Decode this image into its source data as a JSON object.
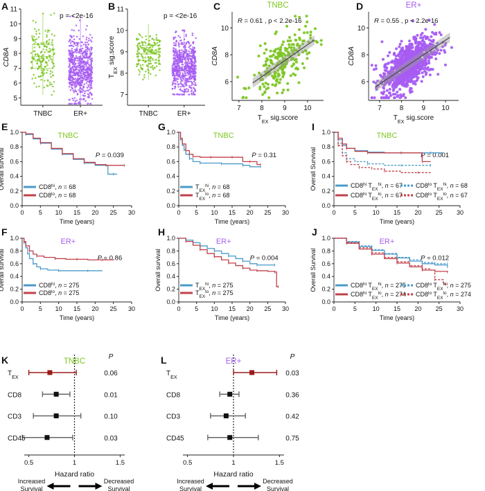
{
  "colors": {
    "tnbc": "#7dc623",
    "erplus": "#a75cf2",
    "blue": "#4a9ac9",
    "red": "#c0404a",
    "dark_red": "#9b1b1b",
    "gray": "#888888"
  },
  "chart_data": [
    {
      "panel": "A",
      "type": "scatter",
      "subtype": "box-jitter",
      "categories": [
        "TNBC",
        "ER+"
      ],
      "ylabel": "CD8A",
      "ylim": [
        4.5,
        11
      ],
      "yticks": [
        5,
        6,
        7,
        8,
        9,
        10,
        11
      ],
      "annotation": "p = <2e-16",
      "boxes": [
        {
          "category": "TNBC",
          "q1": 7.0,
          "median": 7.8,
          "q3": 8.6,
          "whisker_low": 5.2,
          "whisker_high": 10.7
        },
        {
          "category": "ER+",
          "q1": 6.2,
          "median": 6.9,
          "q3": 7.7,
          "whisker_low": 4.6,
          "whisker_high": 10.5
        }
      ]
    },
    {
      "panel": "B",
      "type": "scatter",
      "subtype": "box-jitter",
      "categories": [
        "TNBC",
        "ER+"
      ],
      "ylabel": "TEX sig.score",
      "ylim": [
        6.5,
        11
      ],
      "yticks": [
        7,
        8,
        9,
        10,
        11
      ],
      "annotation": "p = <2e-16",
      "boxes": [
        {
          "category": "TNBC",
          "q1": 8.6,
          "median": 8.9,
          "q3": 9.3,
          "whisker_low": 7.7,
          "whisker_high": 10.3
        },
        {
          "category": "ER+",
          "q1": 7.9,
          "median": 8.3,
          "q3": 8.8,
          "whisker_low": 7.0,
          "whisker_high": 10.0
        }
      ]
    },
    {
      "panel": "C",
      "type": "scatter",
      "title": "TNBC",
      "xlabel": "TEX sig.score",
      "ylabel": "CD8A",
      "xlim": [
        6.7,
        10.7
      ],
      "ylim": [
        4.6,
        11.2
      ],
      "xticks": [
        7,
        8,
        9,
        10
      ],
      "yticks": [
        6,
        8,
        10
      ],
      "annotation": "R = 0.61 , p < 2.2e-16",
      "fit": {
        "x0": 7.6,
        "y0": 5.9,
        "x1": 10.3,
        "y1": 9.1
      }
    },
    {
      "panel": "D",
      "type": "scatter",
      "title": "ER+",
      "xlabel": "TEX sig.score",
      "ylabel": "CD8A",
      "xlim": [
        6.5,
        10.6
      ],
      "ylim": [
        4.6,
        11.2
      ],
      "xticks": [
        7,
        8,
        9,
        10
      ],
      "yticks": [
        6,
        8,
        10
      ],
      "annotation": "R = 0.55 , p < 2.2e-16",
      "fit": {
        "x0": 6.8,
        "y0": 5.6,
        "x1": 10.2,
        "y1": 9.3
      }
    },
    {
      "panel": "E",
      "type": "line",
      "subtype": "kaplan-meier",
      "title": "TNBC",
      "xlabel": "Time (years)",
      "ylabel": "Overall survival",
      "xlim": [
        0,
        30
      ],
      "ylim": [
        0,
        1.0
      ],
      "xticks": [
        0,
        5,
        10,
        15,
        20,
        25,
        30
      ],
      "yticks": [
        0.0,
        0.2,
        0.4,
        0.6,
        0.8,
        1.0
      ],
      "annotation": "P = 0.039",
      "series": [
        {
          "name": "CD8hi, n = 68",
          "color_key": "blue",
          "dash": false,
          "x": [
            0,
            1,
            3,
            5,
            8,
            11,
            14,
            17,
            20,
            23,
            23.5,
            25,
            26
          ],
          "y": [
            1.0,
            0.97,
            0.91,
            0.85,
            0.77,
            0.7,
            0.63,
            0.58,
            0.55,
            0.55,
            0.43,
            0.43,
            0.43
          ]
        },
        {
          "name": "CD8lo, n = 68",
          "color_key": "red",
          "dash": false,
          "x": [
            0,
            1,
            3,
            5,
            8,
            11,
            14,
            17,
            20,
            23,
            26,
            28
          ],
          "y": [
            1.0,
            0.98,
            0.92,
            0.86,
            0.78,
            0.71,
            0.64,
            0.59,
            0.56,
            0.55,
            0.55,
            0.55
          ]
        }
      ]
    },
    {
      "panel": "G",
      "type": "line",
      "subtype": "kaplan-meier",
      "title": "TNBC",
      "xlabel": "Time (years)",
      "ylabel": "",
      "xlim": [
        0,
        30
      ],
      "ylim": [
        0,
        1.0
      ],
      "xticks": [
        0,
        5,
        10,
        15,
        20,
        25,
        30
      ],
      "yticks": [
        0.0,
        0.2,
        0.4,
        0.6,
        0.8,
        1.0
      ],
      "annotation": "P = 0.31",
      "series": [
        {
          "name": "TEXhi, n = 68",
          "color_key": "blue",
          "dash": false,
          "x": [
            0,
            0.5,
            1,
            1.5,
            2,
            3,
            4,
            6,
            9,
            12,
            15,
            18,
            20,
            23
          ],
          "y": [
            1.0,
            0.9,
            0.82,
            0.76,
            0.7,
            0.64,
            0.6,
            0.58,
            0.58,
            0.57,
            0.57,
            0.55,
            0.53,
            0.53
          ]
        },
        {
          "name": "TEXlo, n = 68",
          "color_key": "red",
          "dash": false,
          "x": [
            0,
            0.5,
            1,
            2,
            3,
            4,
            6,
            9,
            12,
            15,
            18,
            20,
            22,
            23
          ],
          "y": [
            1.0,
            0.92,
            0.84,
            0.75,
            0.7,
            0.67,
            0.66,
            0.66,
            0.66,
            0.66,
            0.6,
            0.6,
            0.56,
            0.56
          ]
        }
      ]
    },
    {
      "panel": "I",
      "type": "line",
      "subtype": "kaplan-meier",
      "title": "TNBC",
      "xlabel": "Time (years)",
      "ylabel": "Overall Survival",
      "xlim": [
        0,
        30
      ],
      "ylim": [
        0,
        1.0
      ],
      "xticks": [
        0,
        5,
        10,
        15,
        20,
        25,
        30
      ],
      "yticks": [
        0.0,
        0.2,
        0.4,
        0.6,
        0.8,
        1.0
      ],
      "annotation": "P = 0.001",
      "series": [
        {
          "name": "CD8hi TEXhi, n = 67",
          "color_key": "blue",
          "dash": false,
          "x": [
            0,
            1,
            2,
            3,
            5,
            8,
            12,
            16,
            20,
            23,
            26
          ],
          "y": [
            1.0,
            0.9,
            0.82,
            0.78,
            0.75,
            0.73,
            0.72,
            0.72,
            0.72,
            0.72,
            0.72
          ]
        },
        {
          "name": "CD8lo TEXhi, n = 68",
          "color_key": "blue",
          "dash": true,
          "x": [
            0,
            1,
            2,
            3,
            5,
            8,
            12,
            16,
            20,
            23
          ],
          "y": [
            1.0,
            0.85,
            0.72,
            0.64,
            0.6,
            0.57,
            0.55,
            0.55,
            0.55,
            0.55
          ]
        },
        {
          "name": "CD8hi TEXlo, n = 67",
          "color_key": "red",
          "dash": false,
          "x": [
            0,
            1,
            2,
            3,
            5,
            8,
            12,
            16,
            20,
            21,
            23
          ],
          "y": [
            1.0,
            0.92,
            0.84,
            0.78,
            0.74,
            0.72,
            0.72,
            0.72,
            0.72,
            0.6,
            0.6
          ]
        },
        {
          "name": "CD8lo TEXlo, n = 67",
          "color_key": "red",
          "dash": true,
          "x": [
            0,
            1,
            2,
            3,
            4,
            6,
            9,
            12,
            16,
            20,
            23
          ],
          "y": [
            1.0,
            0.82,
            0.68,
            0.6,
            0.56,
            0.52,
            0.5,
            0.47,
            0.45,
            0.45,
            0.45
          ]
        }
      ]
    },
    {
      "panel": "F",
      "type": "line",
      "subtype": "kaplan-meier",
      "title": "ER+",
      "xlabel": "Time (years)",
      "ylabel": "Overall survival",
      "xlim": [
        0,
        30
      ],
      "ylim": [
        0,
        1.0
      ],
      "xticks": [
        0,
        5,
        10,
        15,
        20,
        25,
        30
      ],
      "yticks": [
        0.0,
        0.2,
        0.4,
        0.6,
        0.8,
        1.0
      ],
      "annotation": "P = 0.86",
      "series": [
        {
          "name": "CD8hi, n = 275",
          "color_key": "blue",
          "dash": false,
          "x": [
            0,
            0.5,
            1,
            1.5,
            2,
            3,
            4,
            5,
            7,
            10,
            14,
            18,
            22
          ],
          "y": [
            1.0,
            0.93,
            0.85,
            0.76,
            0.68,
            0.6,
            0.55,
            0.52,
            0.5,
            0.49,
            0.49,
            0.49,
            0.49
          ]
        },
        {
          "name": "CD8lo, n = 275",
          "color_key": "red",
          "dash": false,
          "x": [
            0,
            0.5,
            1,
            2,
            3,
            4,
            6,
            9,
            12,
            15,
            18,
            22,
            25
          ],
          "y": [
            1.0,
            0.95,
            0.88,
            0.8,
            0.75,
            0.72,
            0.7,
            0.68,
            0.67,
            0.67,
            0.66,
            0.66,
            0.66
          ]
        }
      ]
    },
    {
      "panel": "H",
      "type": "line",
      "subtype": "kaplan-meier",
      "title": "ER+",
      "xlabel": "Time (years)",
      "ylabel": "Overall survival",
      "xlim": [
        0,
        30
      ],
      "ylim": [
        0,
        1.0
      ],
      "xticks": [
        0,
        5,
        10,
        15,
        20,
        25,
        30
      ],
      "yticks": [
        0.0,
        0.2,
        0.4,
        0.6,
        0.8,
        1.0
      ],
      "annotation": "P = 0.004",
      "series": [
        {
          "name": "TEXhi, n = 275",
          "color_key": "blue",
          "dash": false,
          "x": [
            0,
            2,
            4,
            6,
            8,
            10,
            12,
            14,
            16,
            18,
            20,
            22,
            24,
            27
          ],
          "y": [
            1.0,
            0.97,
            0.93,
            0.88,
            0.84,
            0.8,
            0.76,
            0.72,
            0.68,
            0.64,
            0.6,
            0.58,
            0.58,
            0.58
          ]
        },
        {
          "name": "TEXlo, n = 275",
          "color_key": "red",
          "dash": false,
          "x": [
            0,
            2,
            4,
            6,
            8,
            10,
            12,
            14,
            16,
            18,
            20,
            22,
            25,
            27,
            27.5,
            28
          ],
          "y": [
            1.0,
            0.95,
            0.89,
            0.82,
            0.76,
            0.71,
            0.66,
            0.61,
            0.57,
            0.53,
            0.5,
            0.49,
            0.48,
            0.47,
            0.24,
            0.24
          ]
        }
      ]
    },
    {
      "panel": "J",
      "type": "line",
      "subtype": "kaplan-meier",
      "title": "ER+",
      "xlabel": "Time (years)",
      "ylabel": "Overall Survival",
      "xlim": [
        0,
        30
      ],
      "ylim": [
        0,
        1.0
      ],
      "xticks": [
        0,
        5,
        10,
        15,
        20,
        25,
        30
      ],
      "yticks": [
        0.0,
        0.2,
        0.4,
        0.6,
        0.8,
        1.0
      ],
      "annotation": "P = 0.012",
      "series": [
        {
          "name": "CD8hi TEXhi, n = 275",
          "color_key": "blue",
          "dash": false,
          "x": [
            0,
            3,
            6,
            9,
            12,
            15,
            18,
            21,
            24,
            27
          ],
          "y": [
            1.0,
            0.94,
            0.87,
            0.81,
            0.75,
            0.69,
            0.64,
            0.6,
            0.58,
            0.55
          ]
        },
        {
          "name": "CD8lo TEXhi, n = 275",
          "color_key": "blue",
          "dash": true,
          "x": [
            0,
            3,
            6,
            9,
            12,
            15,
            18,
            21,
            24,
            27
          ],
          "y": [
            1.0,
            0.95,
            0.88,
            0.82,
            0.76,
            0.7,
            0.66,
            0.62,
            0.6,
            0.6
          ]
        },
        {
          "name": "CD8hi TEXlo, n = 274",
          "color_key": "red",
          "dash": false,
          "x": [
            0,
            3,
            6,
            9,
            12,
            15,
            18,
            21,
            24,
            27
          ],
          "y": [
            1.0,
            0.92,
            0.83,
            0.75,
            0.68,
            0.61,
            0.55,
            0.5,
            0.48,
            0.47
          ]
        },
        {
          "name": "CD8lo TEXlo, n = 274",
          "color_key": "red",
          "dash": true,
          "x": [
            0,
            3,
            6,
            9,
            12,
            15,
            18,
            21,
            23,
            24,
            26,
            27
          ],
          "y": [
            1.0,
            0.93,
            0.85,
            0.77,
            0.7,
            0.63,
            0.57,
            0.52,
            0.5,
            0.35,
            0.28,
            0.28
          ]
        }
      ]
    },
    {
      "panel": "K",
      "type": "scatter",
      "subtype": "forest",
      "title": "TNBC",
      "xlabel": "Hazard ratio",
      "xlim": [
        0.45,
        1.55
      ],
      "xticks": [
        0.5,
        1.0,
        1.5
      ],
      "reference": 1.0,
      "p_header": "P",
      "rows": [
        {
          "label": "TEX",
          "hr": 0.73,
          "lo": 0.5,
          "hi": 1.02,
          "p": "0.06",
          "color_key": "dark_red"
        },
        {
          "label": "CD8",
          "hr": 0.8,
          "lo": 0.65,
          "hi": 0.95,
          "p": "0.01",
          "color_key": "black"
        },
        {
          "label": "CD3",
          "hr": 0.8,
          "lo": 0.55,
          "hi": 1.07,
          "p": "0.10",
          "color_key": "black"
        },
        {
          "label": "CD45",
          "hr": 0.7,
          "lo": 0.43,
          "hi": 0.98,
          "p": "0.03",
          "color_key": "black"
        }
      ],
      "bottom_left": "Increased Survival",
      "bottom_right": "Decreased Survival"
    },
    {
      "panel": "L",
      "type": "scatter",
      "subtype": "forest",
      "title": "ER+",
      "xlabel": "Hazard ratio",
      "xlim": [
        0.45,
        1.55
      ],
      "xticks": [
        0.5,
        1.0,
        1.5
      ],
      "reference": 1.0,
      "p_header": "P",
      "rows": [
        {
          "label": "TEX",
          "hr": 1.2,
          "lo": 1.0,
          "hi": 1.47,
          "p": "0.03",
          "color_key": "dark_red"
        },
        {
          "label": "CD8",
          "hr": 0.96,
          "lo": 0.85,
          "hi": 1.06,
          "p": "0.36",
          "color_key": "black"
        },
        {
          "label": "CD3",
          "hr": 0.92,
          "lo": 0.75,
          "hi": 1.13,
          "p": "0.42",
          "color_key": "black"
        },
        {
          "label": "CD45",
          "hr": 0.96,
          "lo": 0.72,
          "hi": 1.27,
          "p": "0.75",
          "color_key": "black"
        }
      ],
      "bottom_left": "Increased Survival",
      "bottom_right": "Decreased Survival"
    }
  ]
}
